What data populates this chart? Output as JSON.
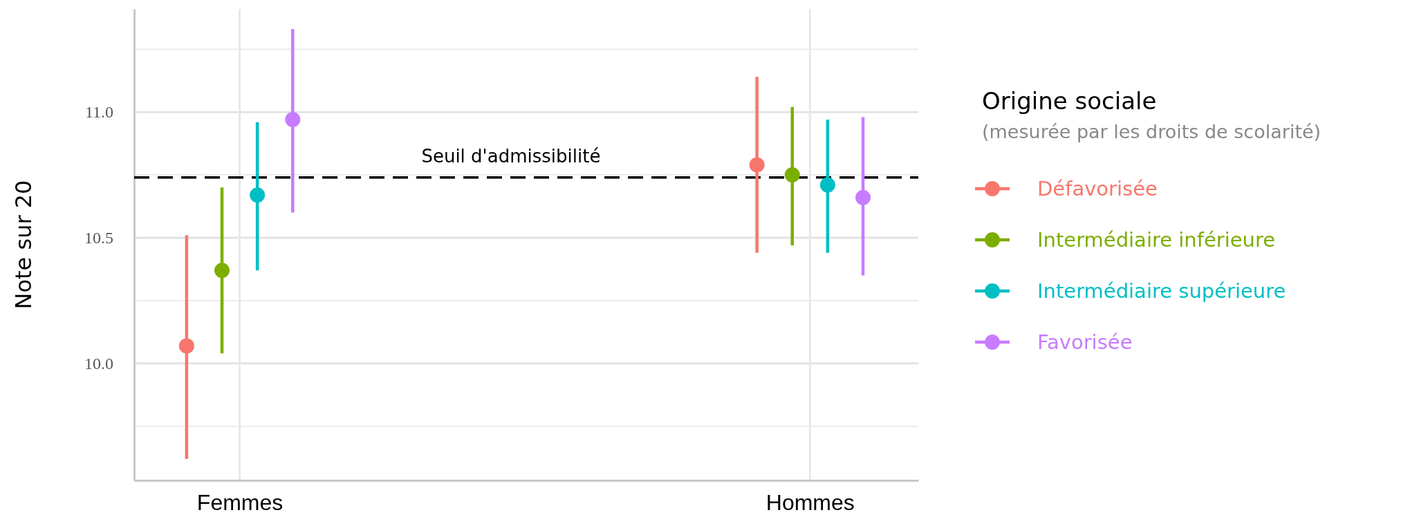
{
  "chart_data": {
    "type": "scatter",
    "ylabel": "Note sur 20",
    "legend_title": "Origine sociale\n(mesurée par les droits de scolarité)",
    "categories": [
      "Femmes",
      "Hommes"
    ],
    "ylim": [
      9.535,
      11.41
    ],
    "yticks": [
      {
        "value": 10,
        "label": "10.0"
      },
      {
        "value": 10.5,
        "label": "10.5"
      },
      {
        "value": 11,
        "label": "11.0"
      }
    ],
    "grid": true,
    "legend": "right",
    "marker": "circle",
    "series": [
      {
        "name": "Défavorisée",
        "color": "#f8766d",
        "values": [
          10.07,
          10.79
        ],
        "errors": [
          [
            9.62,
            10.51
          ],
          [
            10.44,
            11.14
          ]
        ]
      },
      {
        "name": "Intermédiaire inférieure",
        "color": "#7cae00",
        "values": [
          10.37,
          10.75
        ],
        "errors": [
          [
            10.04,
            10.7
          ],
          [
            10.47,
            11.02
          ]
        ]
      },
      {
        "name": "Intermédiaire supérieure",
        "color": "#00bfc4",
        "values": [
          10.67,
          10.71
        ],
        "errors": [
          [
            10.37,
            10.96
          ],
          [
            10.44,
            10.97
          ]
        ]
      },
      {
        "name": "Favorisée",
        "color": "#c77cff",
        "values": [
          10.97,
          10.66
        ],
        "errors": [
          [
            10.6,
            11.33
          ],
          [
            10.35,
            10.98
          ]
        ]
      }
    ],
    "ref_lines": [
      {
        "axis": "y",
        "value": 10.74,
        "label": "Seuil d'admissibilité",
        "color": "#000000",
        "line_style": "dashed"
      }
    ]
  }
}
